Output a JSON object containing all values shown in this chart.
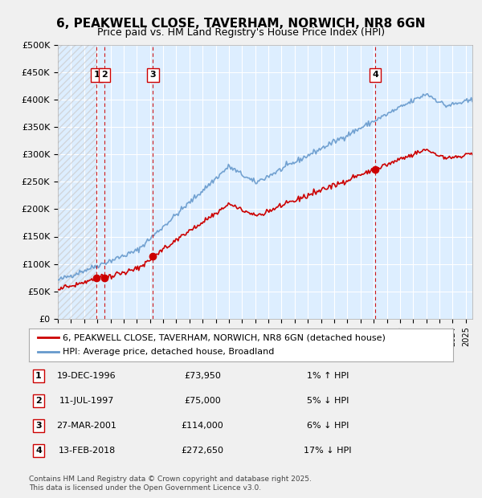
{
  "title": "6, PEAKWELL CLOSE, TAVERHAM, NORWICH, NR8 6GN",
  "subtitle": "Price paid vs. HM Land Registry's House Price Index (HPI)",
  "xlabel": "",
  "ylabel": "",
  "ylim": [
    0,
    500000
  ],
  "yticks": [
    0,
    50000,
    100000,
    150000,
    200000,
    250000,
    300000,
    350000,
    400000,
    450000,
    500000
  ],
  "ytick_labels": [
    "£0",
    "£50K",
    "£100K",
    "£150K",
    "£200K",
    "£250K",
    "£300K",
    "£350K",
    "£400K",
    "£450K",
    "£500K"
  ],
  "xlim_start": 1994.0,
  "xlim_end": 2025.5,
  "sales": [
    {
      "label": "1",
      "date": "19-DEC-1996",
      "year": 1996.96,
      "price": 73950,
      "pct": "1% ↑ HPI"
    },
    {
      "label": "2",
      "date": "11-JUL-1997",
      "year": 1997.53,
      "price": 75000,
      "pct": "5% ↓ HPI"
    },
    {
      "label": "3",
      "date": "27-MAR-2001",
      "year": 2001.23,
      "price": 114000,
      "pct": "6% ↓ HPI"
    },
    {
      "label": "4",
      "date": "13-FEB-2018",
      "year": 2018.12,
      "price": 272650,
      "pct": "17% ↓ HPI"
    }
  ],
  "price_line_color": "#cc0000",
  "hpi_line_color": "#6699cc",
  "hpi_line_color2": "#aaccee",
  "background_color": "#ddeeff",
  "plot_bg_color": "#ddeeff",
  "grid_color": "#ffffff",
  "hatch_color": "#bbbbbb",
  "footer": "Contains HM Land Registry data © Crown copyright and database right 2025.\nThis data is licensed under the Open Government Licence v3.0.",
  "legend_line1": "6, PEAKWELL CLOSE, TAVERHAM, NORWICH, NR8 6GN (detached house)",
  "legend_line2": "HPI: Average price, detached house, Broadland"
}
